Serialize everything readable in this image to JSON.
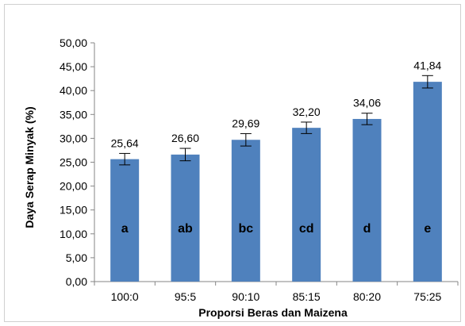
{
  "chart_data": {
    "type": "bar",
    "xlabel": "Proporsi Beras dan Maizena",
    "ylabel": "Daya Serap Minyak (%)",
    "ylim": [
      0,
      50
    ],
    "yticks": [
      "0,00",
      "5,00",
      "10,00",
      "15,00",
      "20,00",
      "25,00",
      "30,00",
      "35,00",
      "40,00",
      "45,00",
      "50,00"
    ],
    "categories": [
      "100:0",
      "95:5",
      "90:10",
      "85:15",
      "80:20",
      "75:25"
    ],
    "values": [
      25.64,
      26.6,
      29.69,
      32.2,
      34.06,
      41.84
    ],
    "value_labels": [
      "25,64",
      "26,60",
      "29,69",
      "32,20",
      "34,06",
      "41,84"
    ],
    "error_bars": [
      1.2,
      1.3,
      1.3,
      1.2,
      1.2,
      1.3
    ],
    "significance_letters": [
      "a",
      "ab",
      "bc",
      "cd",
      "d",
      "e"
    ],
    "bar_color": "#4f81bd",
    "grid": false,
    "legend": "none"
  }
}
